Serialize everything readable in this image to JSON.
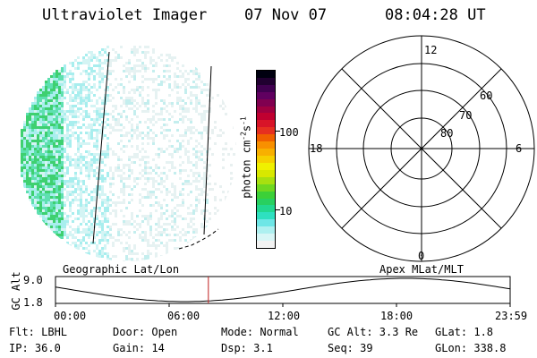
{
  "header": {
    "instrument": "Ultraviolet Imager",
    "date": "07 Nov 07",
    "time": "08:04:28 UT"
  },
  "colorbar": {
    "label": "photon cm",
    "exp1": "-2",
    "mid": "s",
    "exp2": "-1",
    "ticks": [
      "100",
      "10"
    ],
    "colors": [
      "#f2f2f2",
      "#d8f6f6",
      "#aef0f0",
      "#6ee6e6",
      "#2ee0c0",
      "#22d890",
      "#28d060",
      "#3cd038",
      "#70d820",
      "#a8e010",
      "#d8e800",
      "#f0f000",
      "#f6d000",
      "#f8b000",
      "#f89000",
      "#f06000",
      "#e63020",
      "#d81428",
      "#c00030",
      "#a00040",
      "#800050",
      "#600060",
      "#400050",
      "#200030",
      "#000010"
    ]
  },
  "polar_plot": {
    "mlt_labels": {
      "top": "12",
      "left": "18",
      "right": "6",
      "bottom": "0"
    },
    "lat_labels": [
      "60",
      "70",
      "80"
    ]
  },
  "timeline": {
    "left_label": "Geographic Lat/Lon",
    "right_label": "Apex MLat/MLT",
    "y_axis_title": "GC Alt",
    "y_ticks": [
      "9.0",
      "1.8"
    ],
    "x_ticks": [
      "00:00",
      "06:00",
      "12:00",
      "18:00",
      "23:59"
    ],
    "current_time_hours": 8.07
  },
  "info": {
    "filter": "Flt: LBHL",
    "ip": "IP: 36.0",
    "door": "Door: Open",
    "gain": "Gain: 14",
    "mode": "Mode: Normal",
    "dsp": "Dsp:    3.1",
    "gc_alt": "GC Alt: 3.3 Re",
    "seq": "Seq: 39",
    "glat": "GLat:   1.8",
    "glon": "GLon: 338.8"
  }
}
